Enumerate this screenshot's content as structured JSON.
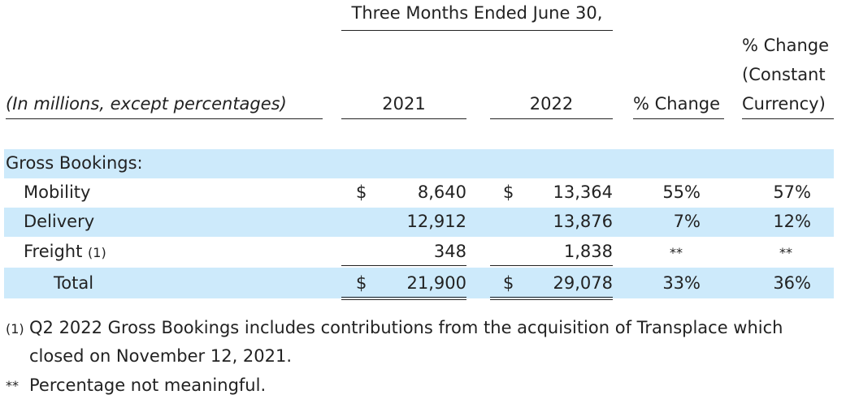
{
  "header": {
    "period": "Three Months Ended June 30,",
    "units": "(In millions, except percentages)",
    "col_2021": "2021",
    "col_2022": "2022",
    "col_change": "% Change",
    "col_cc_line1": "% Change",
    "col_cc_line2": "(Constant",
    "col_cc_line3": "Currency)"
  },
  "section_label": "Gross Bookings:",
  "currency_symbol": "$",
  "rows": [
    {
      "label": "Mobility",
      "v2021": "8,640",
      "v2022": "13,364",
      "chg": "55%",
      "cc": "57%"
    },
    {
      "label": "Delivery",
      "v2021": "12,912",
      "v2022": "13,876",
      "chg": "7%",
      "cc": "12%"
    },
    {
      "label": "Freight",
      "note": "(1)",
      "v2021": "348",
      "v2022": "1,838",
      "chg": "**",
      "cc": "**"
    }
  ],
  "total": {
    "label": "Total",
    "v2021": "21,900",
    "v2022": "29,078",
    "chg": "33%",
    "cc": "36%"
  },
  "footnotes": {
    "f1_marker": "(1)",
    "f1_line1": "Q2 2022 Gross Bookings includes contributions from the acquisition of Transplace which",
    "f1_line2": "closed on November 12, 2021.",
    "f2_marker": "**",
    "f2_text": "Percentage not meaningful."
  },
  "colors": {
    "band": "#cdeafb",
    "text": "#222222"
  }
}
